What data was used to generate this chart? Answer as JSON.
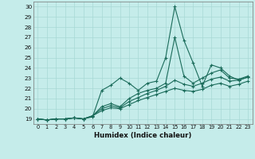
{
  "xlabel": "Humidex (Indice chaleur)",
  "background_color": "#c5ecea",
  "grid_color": "#a8d8d5",
  "line_color": "#1a6b5a",
  "xlim": [
    -0.5,
    23.5
  ],
  "ylim": [
    18.5,
    30.5
  ],
  "yticks": [
    19,
    20,
    21,
    22,
    23,
    24,
    25,
    26,
    27,
    28,
    29,
    30
  ],
  "xticks": [
    0,
    1,
    2,
    3,
    4,
    5,
    6,
    7,
    8,
    9,
    10,
    11,
    12,
    13,
    14,
    15,
    16,
    17,
    18,
    19,
    20,
    21,
    22,
    23
  ],
  "line1": [
    19.0,
    18.9,
    19.0,
    19.0,
    19.1,
    19.0,
    19.2,
    21.8,
    22.3,
    23.0,
    22.5,
    21.8,
    22.5,
    22.7,
    25.0,
    30.0,
    26.7,
    24.5,
    22.2,
    24.3,
    24.0,
    23.2,
    22.8,
    23.1
  ],
  "line2": [
    19.0,
    18.9,
    19.0,
    19.0,
    19.1,
    19.0,
    19.3,
    20.2,
    20.5,
    20.2,
    21.0,
    21.5,
    21.8,
    22.0,
    22.5,
    27.0,
    23.2,
    22.5,
    23.0,
    23.5,
    23.8,
    23.0,
    22.9,
    23.2
  ],
  "line3": [
    19.0,
    18.9,
    19.0,
    19.0,
    19.1,
    19.0,
    19.3,
    20.0,
    20.3,
    20.1,
    20.7,
    21.1,
    21.5,
    21.8,
    22.2,
    22.8,
    22.4,
    22.2,
    22.5,
    22.9,
    23.1,
    22.7,
    22.8,
    23.1
  ],
  "line4": [
    19.0,
    18.9,
    19.0,
    19.0,
    19.1,
    19.0,
    19.3,
    19.8,
    20.1,
    20.0,
    20.4,
    20.8,
    21.1,
    21.4,
    21.7,
    22.0,
    21.8,
    21.7,
    21.9,
    22.3,
    22.5,
    22.2,
    22.4,
    22.7
  ]
}
